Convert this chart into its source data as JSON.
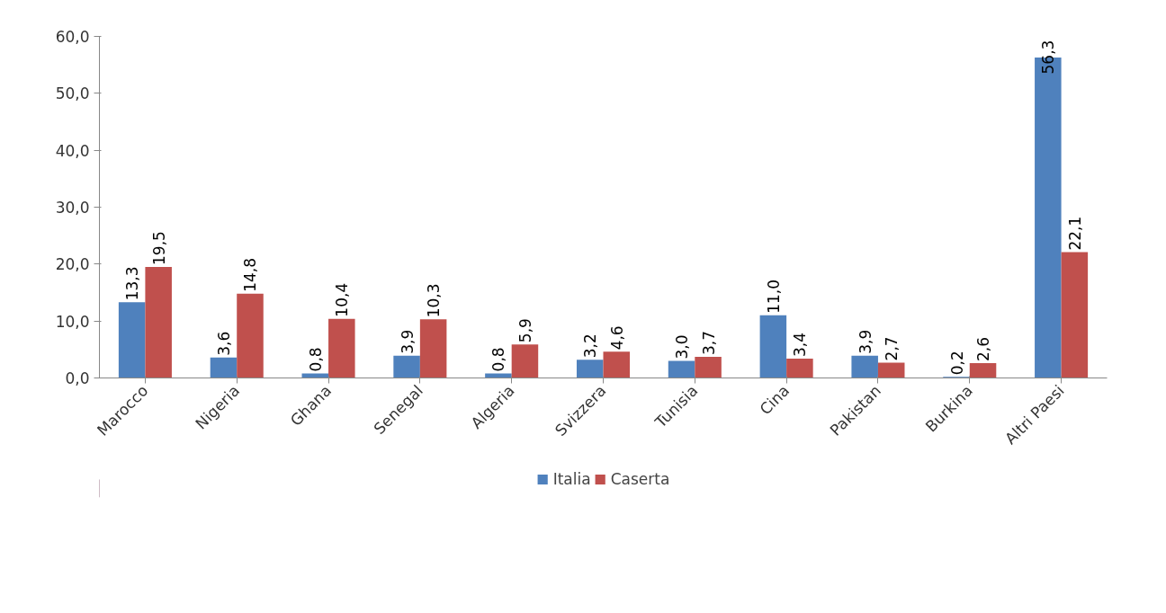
{
  "chart_data": {
    "type": "bar",
    "categories": [
      "Marocco",
      "Nigeria",
      "Ghana",
      "Senegal",
      "Algeria",
      "Svizzera",
      "Tunisia",
      "Cina",
      "Pakistan",
      "Burkina",
      "Altri Paesi"
    ],
    "series": [
      {
        "name": "Italia",
        "color": "#4f81bd",
        "values": [
          13.3,
          3.6,
          0.8,
          3.9,
          0.8,
          3.2,
          3.0,
          11.0,
          3.9,
          0.2,
          56.3
        ],
        "value_labels": [
          "13,3",
          "3,6",
          "0,8",
          "3,9",
          "0,8",
          "3,2",
          "3,0",
          "11,0",
          "3,9",
          "0,2",
          "56,3"
        ]
      },
      {
        "name": "Caserta",
        "color": "#c0504d",
        "values": [
          19.5,
          14.8,
          10.4,
          10.3,
          5.9,
          4.6,
          3.7,
          3.4,
          2.7,
          2.6,
          22.1
        ],
        "value_labels": [
          "19,5",
          "14,8",
          "10,4",
          "10,3",
          "5,9",
          "4,6",
          "3,7",
          "3,4",
          "2,7",
          "2,6",
          "22,1"
        ]
      }
    ],
    "ylim": [
      0,
      60
    ],
    "yticks": [
      {
        "value": 0,
        "label": "0,0"
      },
      {
        "value": 10,
        "label": "10,0"
      },
      {
        "value": 20,
        "label": "20,0"
      },
      {
        "value": 30,
        "label": "30,0"
      },
      {
        "value": 40,
        "label": "40,0"
      },
      {
        "value": 50,
        "label": "50,0"
      },
      {
        "value": 60,
        "label": "60,0"
      }
    ],
    "grid": false,
    "legend": "bottom"
  }
}
